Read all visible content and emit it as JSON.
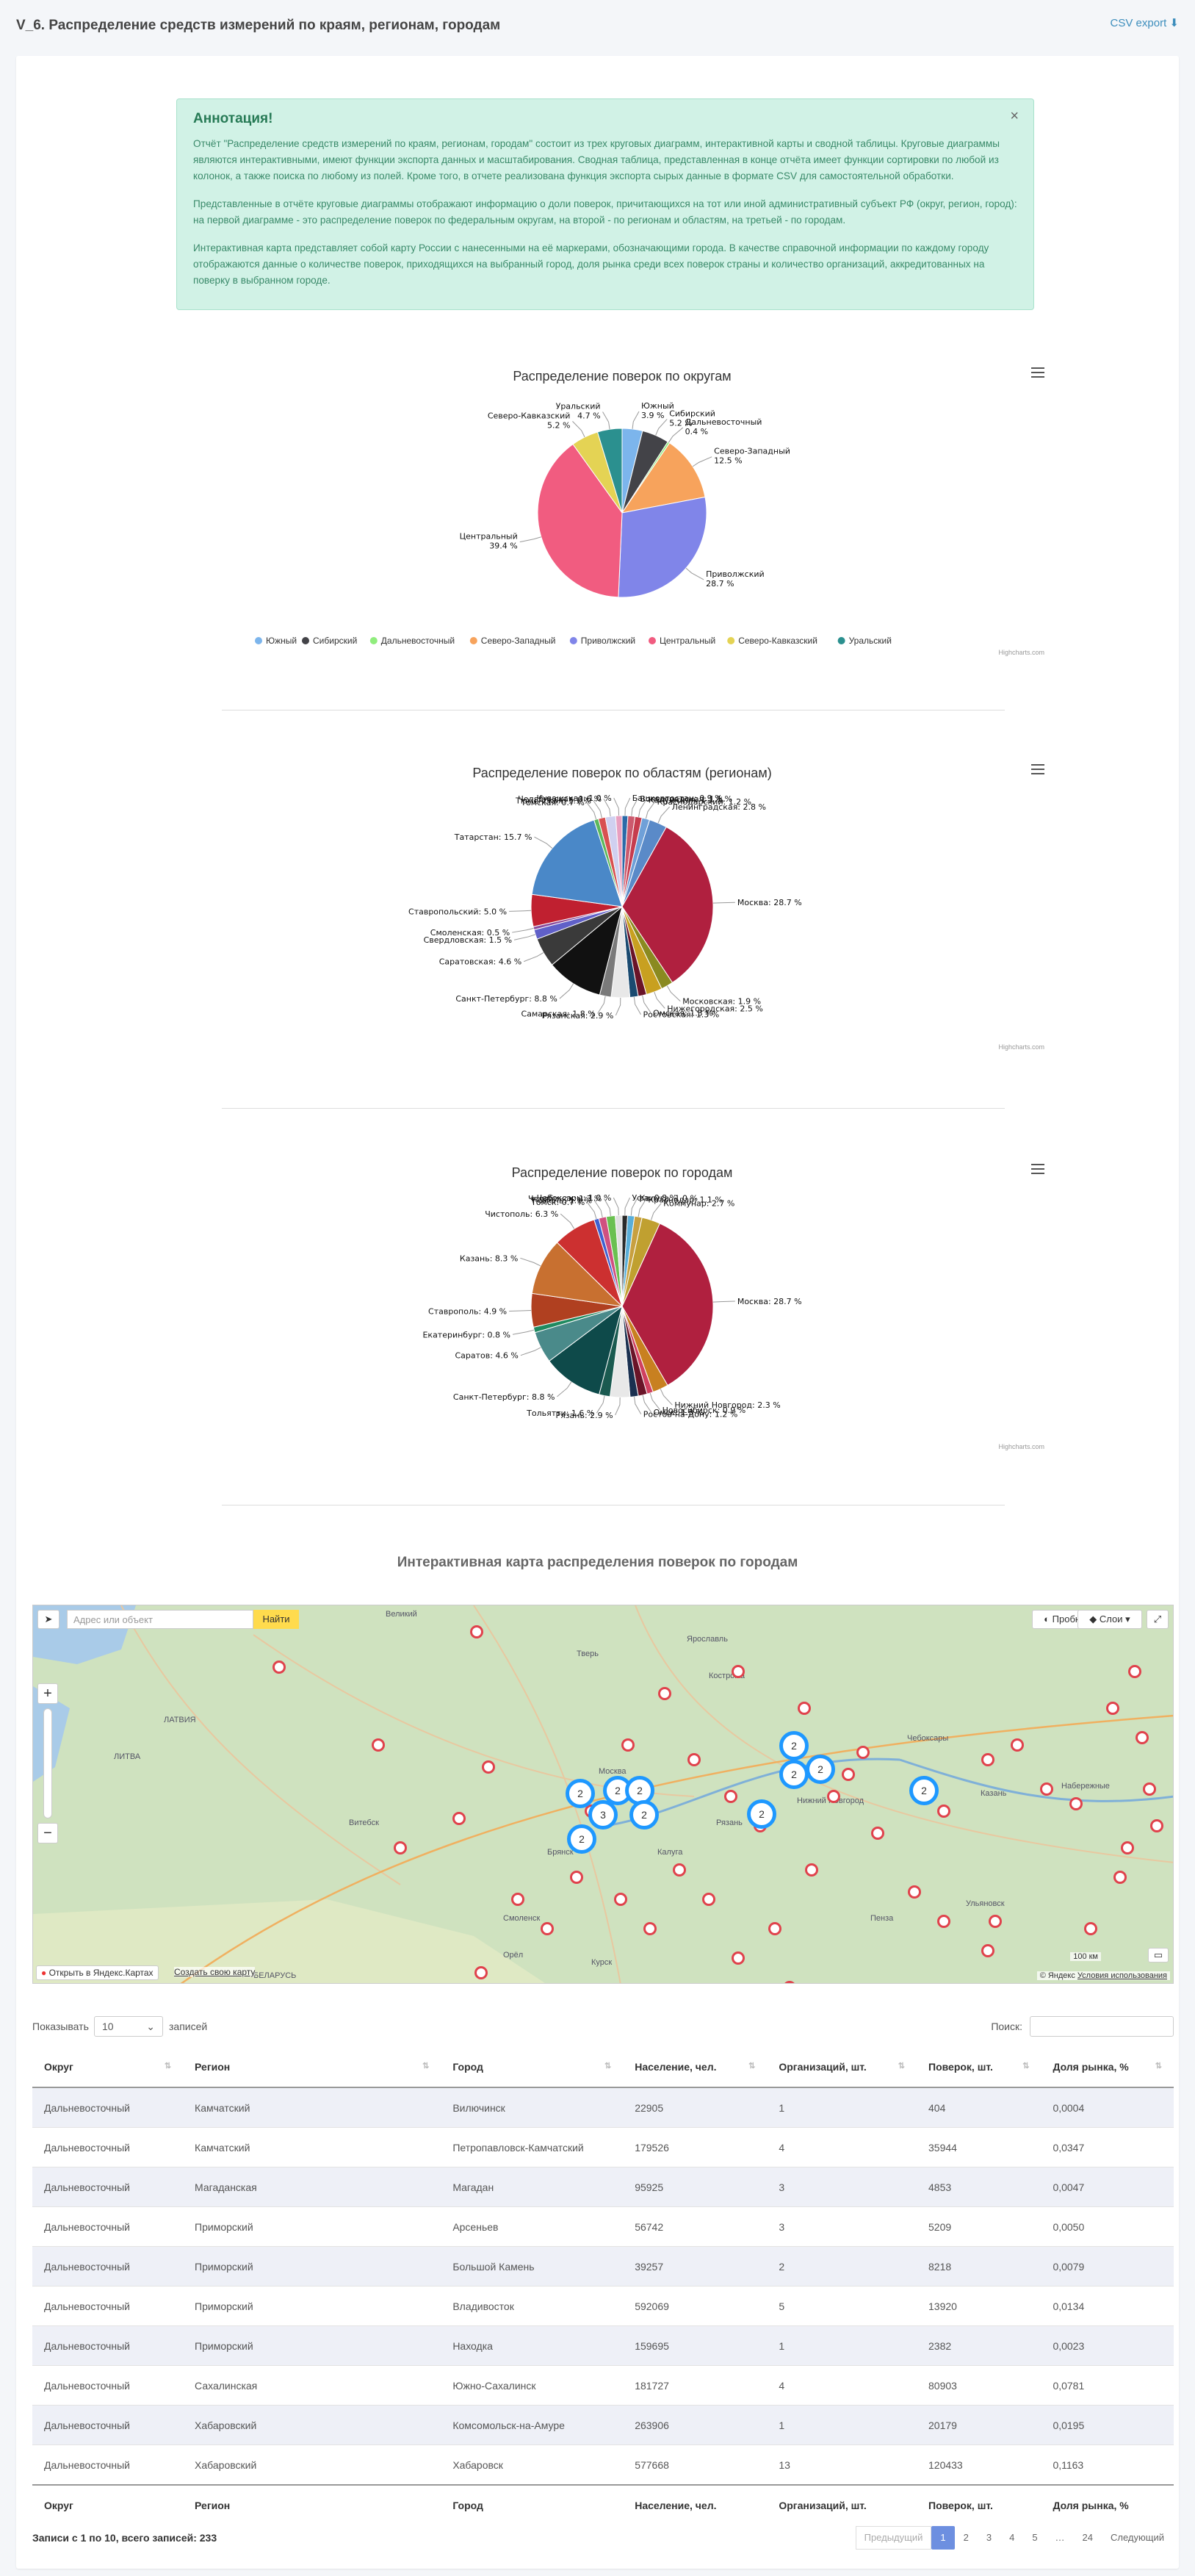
{
  "header": {
    "title": "V_6. Распределение средств измерений по краям, регионам, городам",
    "csv_label": "CSV export"
  },
  "annotation": {
    "title": "Аннотация!",
    "close": "×",
    "p1": "Отчёт \"Распределение средств измерений по краям, регионам, городам\" состоит из трех круговых диаграмм, интерактивной карты и сводной таблицы. Круговые диаграммы являются интерактивными, имеют функции экспорта данных и масштабирования. Сводная таблица, представленная в конце отчёта имеет функции сортировки по любой из колонок, а также поиска по любому из полей. Кроме того, в отчете реализована функция экспорта сырых данные в формате CSV для самостоятельной обработки.",
    "p2": "Представленные в отчёте круговые диаграммы отображают информацию о доли поверок, причитающихся на тот или иной административный субъект РФ (округ, регион, город): на первой диаграмме - это распределение поверок по федеральным округам, на второй - по регионам и областям, на третьей - по городам.",
    "p3": "Интерактивная карта представляет собой карту России с нанесенными на её маркерами, обозначающими города. В качестве справочной информации по каждому городу отображаются данные о количестве поверок, приходящихся на выбранный город, доля рынка среди всех поверок страны и количество организаций, аккредитованных на поверку в выбранном городе."
  },
  "credits": "Highcharts.com",
  "chart_data": [
    {
      "type": "pie",
      "title": "Распределение поверок по округам",
      "slices": [
        {
          "name": "Южный",
          "value": 3.9,
          "color": "#7cb5ec"
        },
        {
          "name": "Сибирский",
          "value": 5.2,
          "color": "#434348"
        },
        {
          "name": "Дальневосточный",
          "value": 0.4,
          "color": "#90ed7d"
        },
        {
          "name": "Северо-Западный",
          "value": 12.5,
          "color": "#f7a35c"
        },
        {
          "name": "Приволжский",
          "value": 28.7,
          "color": "#8085e9"
        },
        {
          "name": "Центральный",
          "value": 39.4,
          "color": "#f15c80"
        },
        {
          "name": "Северо-Кавказский",
          "value": 5.2,
          "color": "#e4d354"
        },
        {
          "name": "Уральский",
          "value": 4.7,
          "color": "#2b908f"
        }
      ],
      "legend": "bottom"
    },
    {
      "type": "pie",
      "title": "Распределение поверок по областям (регионам)",
      "slices": [
        {
          "name": "Башкортостан",
          "value": 0.9,
          "color": "#2b6aa8"
        },
        {
          "name": "Волгоградская",
          "value": 1.1,
          "color": "#cc5a6e"
        },
        {
          "name": "Калужская",
          "value": 1.1,
          "color": "#c63c4e"
        },
        {
          "name": "Краснодарский",
          "value": 1.2,
          "color": "#6fa0d8"
        },
        {
          "name": "Ленинградская",
          "value": 2.8,
          "color": "#5a8ac8"
        },
        {
          "name": "Москва",
          "value": 28.7,
          "color": "#b0203f"
        },
        {
          "name": "Московская",
          "value": 1.9,
          "color": "#8a8a20"
        },
        {
          "name": "Нижегородская",
          "value": 2.5,
          "color": "#c8a020"
        },
        {
          "name": "Омская",
          "value": 1.3,
          "color": "#6a1428"
        },
        {
          "name": "Ростовская",
          "value": 1.3,
          "color": "#1a4a70"
        },
        {
          "name": "Рязанская",
          "value": 2.9,
          "color": "#e8e8e8"
        },
        {
          "name": "Самарская",
          "value": 1.8,
          "color": "#7a7a7a"
        },
        {
          "name": "Санкт-Петербург",
          "value": 8.8,
          "color": "#111111"
        },
        {
          "name": "Саратовская",
          "value": 4.6,
          "color": "#3a3a3a"
        },
        {
          "name": "Свердловская",
          "value": 1.5,
          "color": "#6060c8"
        },
        {
          "name": "Смоленская",
          "value": 0.5,
          "color": "#8a4a9a"
        },
        {
          "name": "Ставропольский",
          "value": 5.0,
          "color": "#c02030"
        },
        {
          "name": "Татарстан",
          "value": 15.7,
          "color": "#4a88c8"
        },
        {
          "name": "Томская",
          "value": 0.7,
          "color": "#5cb85c"
        },
        {
          "name": "Тюменская",
          "value": 1.1,
          "color": "#d85050"
        },
        {
          "name": "Челябинская",
          "value": 1.6,
          "color": "#d0d0f0"
        },
        {
          "name": "Чувашская",
          "value": 1.0,
          "color": "#e8a0c0"
        }
      ]
    },
    {
      "type": "pie",
      "title": "Распределение поверок по городам",
      "slices": [
        {
          "name": "Уфа",
          "value": 0.8,
          "color": "#2a2a2a"
        },
        {
          "name": "Калуга",
          "value": 1.0,
          "color": "#5aaed8"
        },
        {
          "name": "Краснодар",
          "value": 1.1,
          "color": "#c8a040"
        },
        {
          "name": "Коммунар",
          "value": 2.7,
          "color": "#c0a030"
        },
        {
          "name": "Москва",
          "value": 28.7,
          "color": "#b0203f"
        },
        {
          "name": "Нижний Новгород",
          "value": 2.3,
          "color": "#c88020"
        },
        {
          "name": "Новосибирск",
          "value": 0.9,
          "color": "#d04060"
        },
        {
          "name": "Омск",
          "value": 1.3,
          "color": "#6a1428"
        },
        {
          "name": "Ростов-на-Дону",
          "value": 1.2,
          "color": "#1a3050"
        },
        {
          "name": "Рязань",
          "value": 2.9,
          "color": "#e8e8e8"
        },
        {
          "name": "Тольятти",
          "value": 1.6,
          "color": "#1a5a50"
        },
        {
          "name": "Санкт-Петербург",
          "value": 8.8,
          "color": "#0e4a4a"
        },
        {
          "name": "Саратов",
          "value": 4.6,
          "color": "#4a8a8a"
        },
        {
          "name": "Екатеринбург",
          "value": 0.8,
          "color": "#208a60"
        },
        {
          "name": "Ставрополь",
          "value": 4.9,
          "color": "#b04020"
        },
        {
          "name": "Казань",
          "value": 8.3,
          "color": "#c87030"
        },
        {
          "name": "Чистополь",
          "value": 6.3,
          "color": "#cc3030"
        },
        {
          "name": "Томск",
          "value": 0.7,
          "color": "#4060d0"
        },
        {
          "name": "Тюмень",
          "value": 1.1,
          "color": "#d05080"
        },
        {
          "name": "Челябинск",
          "value": 1.3,
          "color": "#6ac050"
        },
        {
          "name": "Чебоксары",
          "value": 1.0,
          "color": "#e0e0e0"
        }
      ]
    }
  ],
  "map_section": {
    "title": "Интерактивная карта распределения поверок по городам",
    "search_placeholder": "Адрес или объект",
    "find_label": "Найти",
    "traffic_label": "Пробки",
    "layers_label": "Слои",
    "open_yandex": "Открыть в Яндекс.Картах",
    "create_map": "Создать свою карту",
    "copyright": "© Яндекс",
    "terms": "Условия использования",
    "scale": "100 км",
    "places": [
      "ЛАТВИЯ",
      "ЛИТВА",
      "БЕЛАРУСЬ",
      "Витебск",
      "Брянск",
      "Калуга",
      "Смоленск",
      "Рязань",
      "Москва",
      "Нижний Новгород",
      "Кострома",
      "Чебоксары",
      "Казань",
      "Набережные",
      "Тверь",
      "Ярославль",
      "Курск",
      "Орёл",
      "Пенза",
      "Ульяновск",
      "Великий"
    ],
    "clusters": [
      "2",
      "2",
      "2",
      "2",
      "3",
      "2",
      "2",
      "2",
      "2",
      "2",
      "2"
    ]
  },
  "table_controls": {
    "show_label": "Показывать",
    "page_size": "10",
    "records_label": "записей",
    "search_label": "Поиск:"
  },
  "table": {
    "columns": [
      "Округ",
      "Регион",
      "Город",
      "Население, чел.",
      "Организаций, шт.",
      "Поверок, шт.",
      "Доля рынка, %"
    ],
    "rows": [
      [
        "Дальневосточный",
        "Камчатский",
        "Вилючинск",
        "22905",
        "1",
        "404",
        "0,0004"
      ],
      [
        "Дальневосточный",
        "Камчатский",
        "Петропавловск-Камчатский",
        "179526",
        "4",
        "35944",
        "0,0347"
      ],
      [
        "Дальневосточный",
        "Магаданская",
        "Магадан",
        "95925",
        "3",
        "4853",
        "0,0047"
      ],
      [
        "Дальневосточный",
        "Приморский",
        "Арсеньев",
        "56742",
        "3",
        "5209",
        "0,0050"
      ],
      [
        "Дальневосточный",
        "Приморский",
        "Большой Камень",
        "39257",
        "2",
        "8218",
        "0,0079"
      ],
      [
        "Дальневосточный",
        "Приморский",
        "Владивосток",
        "592069",
        "5",
        "13920",
        "0,0134"
      ],
      [
        "Дальневосточный",
        "Приморский",
        "Находка",
        "159695",
        "1",
        "2382",
        "0,0023"
      ],
      [
        "Дальневосточный",
        "Сахалинская",
        "Южно-Сахалинск",
        "181727",
        "4",
        "80903",
        "0,0781"
      ],
      [
        "Дальневосточный",
        "Хабаровский",
        "Комсомольск-на-Амуре",
        "263906",
        "1",
        "20179",
        "0,0195"
      ],
      [
        "Дальневосточный",
        "Хабаровский",
        "Хабаровск",
        "577668",
        "13",
        "120433",
        "0,1163"
      ]
    ],
    "info": "Записи с 1 по 10, всего записей: 233"
  },
  "pagination": {
    "prev": "Предыдущий",
    "pages": [
      "1",
      "2",
      "3",
      "4",
      "5",
      "…",
      "24"
    ],
    "next": "Следующий"
  }
}
